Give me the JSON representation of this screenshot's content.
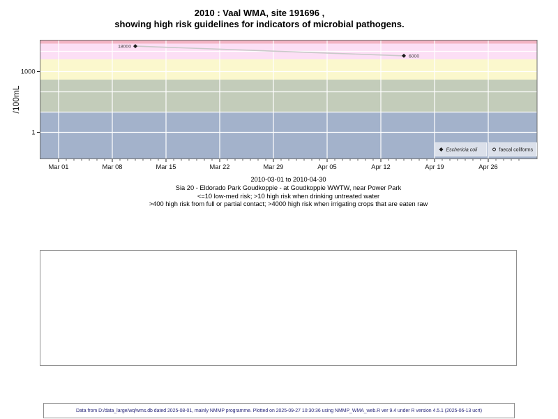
{
  "title": {
    "line1": "2010 : Vaal WMA, site 191696 ,",
    "line2": "showing high risk guidelines for indicators of microbial pathogens."
  },
  "chart_data": {
    "type": "scatter",
    "title": "2010 : Vaal WMA, site 191696 , showing high risk guidelines for indicators of microbial pathogens.",
    "xlabel": "",
    "ylabel": "/100mL",
    "y_scale": "log10",
    "ylim": [
      0.05,
      35000
    ],
    "grid": "white-on-bands",
    "y_tick_labels": [
      {
        "value": 1000,
        "label": "1000"
      },
      {
        "value": 1,
        "label": "1"
      }
    ],
    "y_gridline_values": [
      1,
      10,
      100,
      1000,
      10000
    ],
    "x_axis": {
      "start": "2010-03-01",
      "end": "2010-04-30",
      "major_ticks": [
        {
          "label": "Mar 01",
          "day": 0
        },
        {
          "label": "Mar 08",
          "day": 7
        },
        {
          "label": "Mar 15",
          "day": 14
        },
        {
          "label": "Mar 22",
          "day": 21
        },
        {
          "label": "Mar 29",
          "day": 28
        },
        {
          "label": "Apr 05",
          "day": 35
        },
        {
          "label": "Apr 12",
          "day": 42
        },
        {
          "label": "Apr 19",
          "day": 49
        },
        {
          "label": "Apr 26",
          "day": 56
        }
      ],
      "minor_tick_every_days": 1,
      "minor_tick_day_range": [
        0,
        60
      ]
    },
    "bands": [
      {
        "name": "extreme",
        "min": 24000,
        "max": null,
        "color": "#f3b4c4"
      },
      {
        "name": "high-risk-irrigation",
        "min": 4000,
        "max": 24000,
        "color": "#fcdff5"
      },
      {
        "name": "high-risk-contact",
        "min": 400,
        "max": 4000,
        "color": "#fbf8cd"
      },
      {
        "name": "high-risk-drinking",
        "min": 10,
        "max": 400,
        "color": "#c3ccba"
      },
      {
        "name": "low-med-risk",
        "min": null,
        "max": 10,
        "color": "#a3b2cb"
      }
    ],
    "series": [
      {
        "name": "Eschericia coli",
        "marker": "filled-diamond",
        "marker_color": "#1a1a1a",
        "line_color": "#c9c9c9",
        "points": [
          {
            "date": "2010-03-11",
            "value": 18000,
            "label": "18000",
            "label_side": "left"
          },
          {
            "date": "2010-04-15",
            "value": 6000,
            "label": "6000",
            "label_side": "right"
          }
        ]
      },
      {
        "name": "faecal coliforms",
        "marker": "open-circle",
        "marker_color": "#1a1a1a",
        "points": []
      }
    ],
    "legend": {
      "position": "bottom-right",
      "bg": "#dbe0ea",
      "border": "#eef1f6",
      "entries": [
        {
          "marker": "filled-diamond",
          "label": "Eschericia coli",
          "italic": true
        },
        {
          "marker": "open-circle",
          "label": "faecal coliforms",
          "italic": false
        }
      ]
    }
  },
  "captions": [
    "2010-03-01 to 2010-04-30",
    "Sia 20 - Eldorado Park Goudkoppie - at Goudkoppie WWTW, near Power Park",
    "<=10 low-med risk; >10 high risk when drinking untreated water",
    ">400 high risk from full or partial contact; >4000 high risk when irrigating crops that are eaten raw"
  ],
  "footer": {
    "text": "Data from D:/data_large/wq/wms.db dated 2025-08-01, mainly NMMP programme. Plotted on 2025-09-27 10:30:36 using NMMP_WMA_web.R ver 9.4 under R version 4.5.1 (2025-06-13 ucrt)"
  }
}
